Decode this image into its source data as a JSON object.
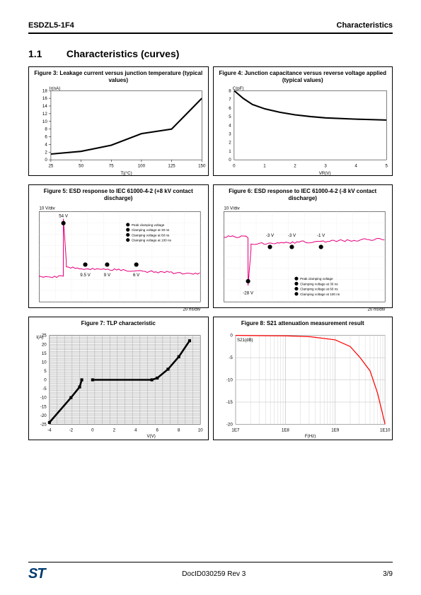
{
  "header": {
    "left": "ESDZL5-1F4",
    "right": "Characteristics"
  },
  "section": {
    "num": "1.1",
    "title": "Characteristics (curves)"
  },
  "footer": {
    "docid": "DocID030259 Rev 3",
    "page": "3/9",
    "logo": "ST"
  },
  "fig3": {
    "title": "Figure 3: Leakage current versus junction temperature (typical values)",
    "ylabel": "Ir(nA)",
    "xlabel": "Tj(°C)",
    "xlim": [
      25,
      150
    ],
    "ylim": [
      0,
      18
    ],
    "xtick_step": 25,
    "yticks": [
      0,
      2,
      4,
      6,
      8,
      10,
      12,
      14,
      16,
      18
    ],
    "data": [
      [
        25,
        1.5
      ],
      [
        50,
        2.2
      ],
      [
        75,
        3.8
      ],
      [
        100,
        6.8
      ],
      [
        125,
        8.0
      ],
      [
        150,
        16.0
      ]
    ],
    "line_color": "#000000",
    "line_width": 2,
    "bg": "#ffffff"
  },
  "fig4": {
    "title": "Figure 4: Junction capacitance versus reverse voltage applied (typical values)",
    "ylabel": "C(pF)",
    "xlabel": "VR(V)",
    "xlim": [
      0,
      5
    ],
    "ylim": [
      0,
      8
    ],
    "xtick": [
      0,
      1,
      2,
      3,
      4,
      5
    ],
    "yticks": [
      0,
      1,
      2,
      3,
      4,
      5,
      6,
      7,
      8
    ],
    "data": [
      [
        0,
        8.0
      ],
      [
        0.3,
        7.1
      ],
      [
        0.6,
        6.4
      ],
      [
        1,
        5.9
      ],
      [
        1.5,
        5.5
      ],
      [
        2,
        5.2
      ],
      [
        2.5,
        5.0
      ],
      [
        3,
        4.85
      ],
      [
        4,
        4.7
      ],
      [
        5,
        4.6
      ]
    ],
    "line_color": "#000000",
    "line_width": 2,
    "bg": "#ffffff"
  },
  "fig5": {
    "title": "Figure 5: ESD response to IEC 61000-4-2 (+8 kV contact discharge)",
    "yscale": "10 V/div",
    "xscale": "20 ns/div",
    "waveform_color": "#e6007e",
    "labels": {
      "peak": "54 V",
      "a": "9.5 V",
      "b": "9 V",
      "c": "6 V"
    },
    "legend": [
      "Peak clamping voltage",
      "Clamping voltage at 30 ns",
      "Clamping voltage at 60 ns",
      "Clamping voltage at 100 ns"
    ]
  },
  "fig6": {
    "title": "Figure 6: ESD response to IEC 61000-4-2 (-8 kV contact discharge)",
    "yscale": "10 V/div",
    "xscale": "20 ns/div",
    "waveform_color": "#e6007e",
    "labels": {
      "peak": "-28 V",
      "a": "-3 V",
      "b": "-3 V",
      "c": "-1 V"
    },
    "legend": [
      "Peak clamping voltage",
      "Clamping voltage at 30 ns",
      "Clamping voltage at 60 ns",
      "Clamping voltage at 100 ns"
    ]
  },
  "fig7": {
    "title": "Figure 7: TLP characteristic",
    "xlabel": "V(V)",
    "ylabel": "I(A)",
    "xlim": [
      -4,
      10
    ],
    "ylim": [
      -25,
      25
    ],
    "xtick_step": 2,
    "ytick_step": 5,
    "neg_seg": [
      [
        -4,
        -24
      ],
      [
        -2,
        -10
      ],
      [
        -1.2,
        -4
      ],
      [
        -1,
        0
      ]
    ],
    "pos_seg": [
      [
        0,
        0
      ],
      [
        5.5,
        0
      ],
      [
        6,
        1
      ],
      [
        7,
        6
      ],
      [
        8,
        13
      ],
      [
        9,
        22
      ]
    ],
    "line_color": "#000000",
    "line_width": 2.5,
    "grid_color": "#888888",
    "bg_band": "#d0d0d0"
  },
  "fig8": {
    "title": "Figure 8: S21 attenuation measurement result",
    "ylabel": "S21(dB)",
    "xlabel": "F(Hz)",
    "xlim_log": [
      7,
      10
    ],
    "ylim": [
      -20,
      0
    ],
    "ytick_step": 5,
    "xticks_labels": [
      "1E7",
      "1E8",
      "1E9",
      "1E10"
    ],
    "data": [
      [
        7,
        0
      ],
      [
        8,
        -0.1
      ],
      [
        8.5,
        -0.3
      ],
      [
        9,
        -1.0
      ],
      [
        9.3,
        -2.5
      ],
      [
        9.5,
        -5
      ],
      [
        9.7,
        -8
      ],
      [
        9.85,
        -13
      ],
      [
        10,
        -20
      ]
    ],
    "line_color": "#ff0000",
    "line_width": 1.2,
    "grid_color": "#bbbbbb"
  }
}
